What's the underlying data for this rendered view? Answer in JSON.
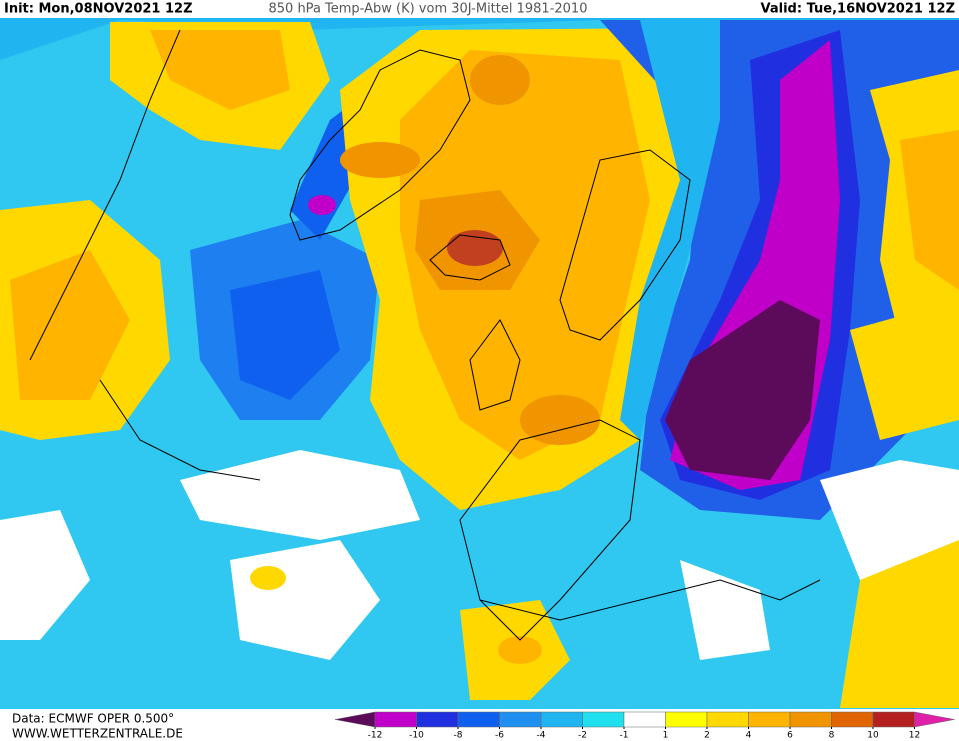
{
  "header": {
    "init": "Init: Mon,08NOV2021 12Z",
    "title": "850 hPa Temp-Abw (K) vom 30J-Mittel 1981-2010",
    "valid": "Valid: Tue,16NOV2021 12Z"
  },
  "footer": {
    "source": "Data: ECMWF OPER 0.500°",
    "website": "WWW.WETTERZENTRALE.DE"
  },
  "legend": {
    "ticks": [
      -12,
      -10,
      -8,
      -6,
      -4,
      -2,
      -1,
      1,
      2,
      4,
      6,
      8,
      10,
      12
    ],
    "colors": [
      "#5c0a5a",
      "#c000c8",
      "#2030e0",
      "#1060f0",
      "#2090f0",
      "#20b4f0",
      "#20e0f0",
      "#ffffff",
      "#ffff00",
      "#ffd800",
      "#ffb400",
      "#f09400",
      "#e06400",
      "#b42020",
      "#e020a8"
    ]
  }
}
